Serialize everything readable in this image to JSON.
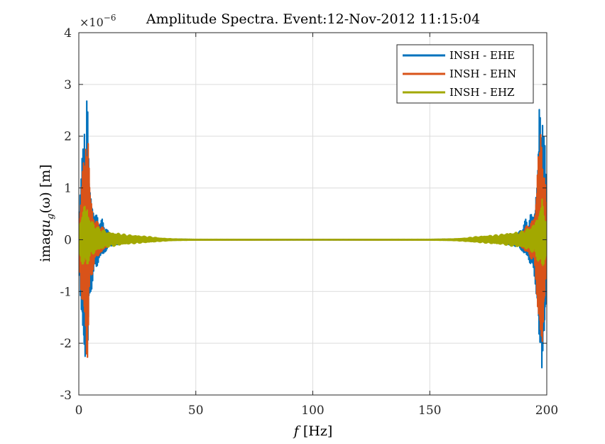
{
  "chart_data": {
    "type": "line",
    "title": "Amplitude Spectra. Event:12-Nov-2012 11:15:04",
    "xlabel": {
      "var": "f",
      "unit": " [Hz]"
    },
    "ylabel": {
      "base": "imag",
      "var": "u",
      "sub": "g",
      "arg": "(ω)",
      "unit": " [m]"
    },
    "y_exponent": {
      "base": "×10",
      "power": "−6"
    },
    "xlim": [
      0,
      200
    ],
    "ylim": [
      -3,
      4
    ],
    "x_ticks": [
      0,
      50,
      100,
      150,
      200
    ],
    "x_tick_labels": [
      "0",
      "50",
      "100",
      "150",
      "200"
    ],
    "y_ticks": [
      -3,
      -2,
      -1,
      0,
      1,
      2,
      3,
      4
    ],
    "y_tick_labels": [
      "-3",
      "-2",
      "-1",
      "0",
      "1",
      "2",
      "3",
      "4"
    ],
    "grid": true,
    "legend_position": "top-right",
    "series": [
      {
        "name": "INSH - EHE",
        "color": "#0072BD",
        "envelope": {
          "x": [
            0,
            1,
            2,
            2.5,
            3,
            3.5,
            4,
            4.5,
            5,
            6,
            7,
            8,
            9,
            10,
            11,
            12,
            13,
            14,
            16,
            18,
            20,
            25,
            30,
            35,
            40,
            50,
            100,
            150,
            160,
            165,
            170,
            175,
            180,
            182,
            184,
            186,
            188,
            189,
            190,
            191,
            192,
            193,
            194,
            195,
            195.5,
            196,
            196.5,
            197,
            197.5,
            198,
            199,
            200
          ],
          "pos": [
            0.7,
            1.2,
            2.2,
            3.05,
            1.8,
            3.2,
            2.3,
            1.2,
            1.0,
            0.65,
            0.5,
            0.5,
            0.35,
            0.4,
            0.3,
            0.2,
            0.15,
            0.12,
            0.1,
            0.08,
            0.06,
            0.04,
            0.025,
            0.015,
            0.01,
            0.005,
            0.003,
            0.005,
            0.01,
            0.015,
            0.025,
            0.04,
            0.06,
            0.08,
            0.1,
            0.12,
            0.15,
            0.2,
            0.3,
            0.4,
            0.35,
            0.5,
            0.5,
            0.65,
            1.0,
            1.2,
            2.3,
            3.2,
            1.8,
            3.05,
            2.2,
            0.7
          ],
          "neg": [
            0.5,
            1.5,
            2.4,
            2.75,
            2.0,
            2.2,
            2.6,
            1.5,
            1.1,
            0.8,
            0.65,
            0.5,
            0.4,
            0.3,
            0.3,
            0.2,
            0.15,
            0.12,
            0.1,
            0.08,
            0.06,
            0.04,
            0.025,
            0.015,
            0.01,
            0.005,
            0.003,
            0.005,
            0.01,
            0.015,
            0.025,
            0.04,
            0.06,
            0.08,
            0.1,
            0.12,
            0.15,
            0.2,
            0.3,
            0.3,
            0.4,
            0.5,
            0.65,
            0.8,
            1.1,
            1.5,
            2.6,
            2.2,
            2.0,
            2.75,
            2.4,
            0.5
          ]
        }
      },
      {
        "name": "INSH - EHN",
        "color": "#D95319",
        "envelope": {
          "x": [
            0,
            1,
            2,
            2.5,
            3,
            3.5,
            4,
            4.5,
            5,
            6,
            7,
            8,
            9,
            10,
            11,
            12,
            13,
            14,
            16,
            18,
            20,
            25,
            30,
            35,
            40,
            50,
            100,
            150,
            160,
            165,
            170,
            175,
            180,
            182,
            184,
            186,
            188,
            189,
            190,
            191,
            192,
            193,
            194,
            195,
            195.5,
            196,
            196.5,
            197,
            197.5,
            198,
            199,
            200
          ],
          "pos": [
            0.5,
            1.0,
            1.6,
            1.8,
            2.2,
            1.9,
            2.1,
            1.5,
            0.9,
            0.55,
            0.4,
            0.35,
            0.3,
            0.25,
            0.2,
            0.15,
            0.12,
            0.1,
            0.08,
            0.06,
            0.05,
            0.03,
            0.02,
            0.012,
            0.008,
            0.004,
            0.002,
            0.004,
            0.008,
            0.012,
            0.02,
            0.03,
            0.05,
            0.06,
            0.08,
            0.1,
            0.12,
            0.15,
            0.2,
            0.25,
            0.3,
            0.35,
            0.4,
            0.55,
            0.9,
            1.5,
            2.1,
            1.9,
            2.2,
            1.8,
            1.6,
            0.5
          ],
          "neg": [
            0.4,
            1.1,
            1.5,
            2.1,
            1.9,
            2.5,
            2.0,
            1.3,
            0.9,
            0.6,
            0.45,
            0.35,
            0.3,
            0.25,
            0.2,
            0.15,
            0.12,
            0.1,
            0.08,
            0.06,
            0.05,
            0.03,
            0.02,
            0.012,
            0.008,
            0.004,
            0.002,
            0.004,
            0.008,
            0.012,
            0.02,
            0.03,
            0.05,
            0.06,
            0.08,
            0.1,
            0.12,
            0.15,
            0.2,
            0.25,
            0.3,
            0.35,
            0.45,
            0.6,
            0.9,
            1.3,
            2.0,
            2.5,
            1.9,
            2.1,
            1.5,
            0.4
          ]
        }
      },
      {
        "name": "INSH - EHZ",
        "color": "#A2A800",
        "envelope": {
          "x": [
            0,
            1,
            2,
            2.5,
            3,
            3.5,
            4,
            4.5,
            5,
            6,
            7,
            8,
            9,
            10,
            11,
            12,
            13,
            14,
            16,
            18,
            20,
            25,
            30,
            35,
            40,
            50,
            100,
            150,
            160,
            165,
            170,
            175,
            180,
            182,
            184,
            186,
            188,
            189,
            190,
            191,
            192,
            193,
            194,
            195,
            195.5,
            196,
            196.5,
            197,
            197.5,
            198,
            199,
            200
          ],
          "pos": [
            0.3,
            0.5,
            0.6,
            0.8,
            0.6,
            0.7,
            0.55,
            0.45,
            0.4,
            0.35,
            0.3,
            0.25,
            0.22,
            0.2,
            0.18,
            0.16,
            0.15,
            0.14,
            0.13,
            0.12,
            0.1,
            0.08,
            0.06,
            0.03,
            0.015,
            0.006,
            0.003,
            0.006,
            0.015,
            0.03,
            0.06,
            0.08,
            0.1,
            0.12,
            0.13,
            0.14,
            0.15,
            0.16,
            0.18,
            0.2,
            0.22,
            0.25,
            0.3,
            0.35,
            0.4,
            0.45,
            0.55,
            0.7,
            0.6,
            0.8,
            0.6,
            0.3
          ],
          "neg": [
            0.3,
            0.45,
            0.5,
            0.55,
            0.5,
            0.5,
            0.45,
            0.4,
            0.35,
            0.3,
            0.25,
            0.22,
            0.2,
            0.18,
            0.16,
            0.15,
            0.14,
            0.13,
            0.12,
            0.1,
            0.09,
            0.07,
            0.05,
            0.03,
            0.015,
            0.006,
            0.003,
            0.006,
            0.015,
            0.03,
            0.05,
            0.07,
            0.09,
            0.1,
            0.12,
            0.13,
            0.14,
            0.15,
            0.16,
            0.18,
            0.2,
            0.22,
            0.25,
            0.3,
            0.35,
            0.4,
            0.45,
            0.5,
            0.5,
            0.55,
            0.5,
            0.3
          ]
        }
      }
    ]
  }
}
